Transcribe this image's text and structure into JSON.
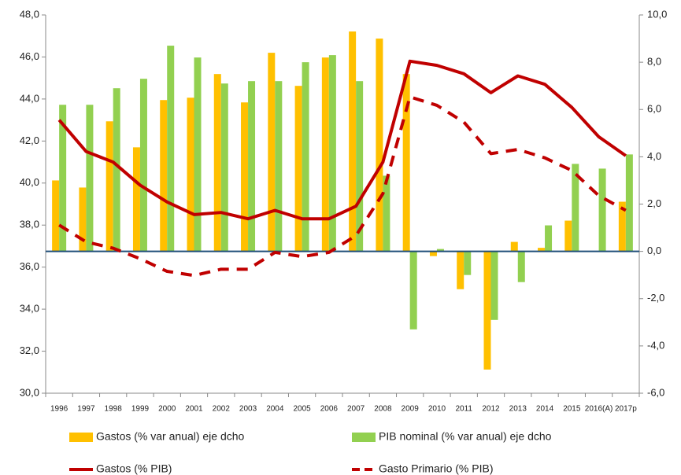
{
  "chart_data": {
    "type": "combo",
    "categories": [
      "1996",
      "1997",
      "1998",
      "1999",
      "2000",
      "2001",
      "2002",
      "2003",
      "2004",
      "2005",
      "2006",
      "2007",
      "2008",
      "2009",
      "2010",
      "2011",
      "2012",
      "2013",
      "2014",
      "2015",
      "2016(A)",
      "2017p"
    ],
    "ylim": [
      30,
      48
    ],
    "yticks": [
      {
        "value": 30,
        "label": "30,0"
      },
      {
        "value": 32,
        "label": "32,0"
      },
      {
        "value": 34,
        "label": "34,0"
      },
      {
        "value": 36,
        "label": "36,0"
      },
      {
        "value": 38,
        "label": "38,0"
      },
      {
        "value": 40,
        "label": "40,0"
      },
      {
        "value": 42,
        "label": "42,0"
      },
      {
        "value": 44,
        "label": "44,0"
      },
      {
        "value": 46,
        "label": "46,0"
      },
      {
        "value": 48,
        "label": "48,0"
      }
    ],
    "y2lim": [
      -6,
      10
    ],
    "y2ticks": [
      {
        "value": -6,
        "label": "-6,0"
      },
      {
        "value": -4,
        "label": "-4,0"
      },
      {
        "value": -2,
        "label": "-2,0"
      },
      {
        "value": 0,
        "label": "0,0"
      },
      {
        "value": 2,
        "label": "2,0"
      },
      {
        "value": 4,
        "label": "4,0"
      },
      {
        "value": 6,
        "label": "6,0"
      },
      {
        "value": 8,
        "label": "8,0"
      },
      {
        "value": 10,
        "label": "10,0"
      }
    ],
    "grid": false,
    "series": [
      {
        "name": "Gastos (% var anual) eje dcho",
        "type": "bar",
        "axis": "y2",
        "color": "#ffc000",
        "values": [
          3.0,
          2.7,
          5.5,
          4.4,
          6.4,
          6.5,
          7.5,
          6.3,
          8.4,
          7.0,
          8.2,
          9.3,
          9.0,
          7.5,
          -0.2,
          -1.6,
          -5.0,
          0.4,
          0.15,
          1.3,
          null,
          2.1
        ]
      },
      {
        "name": "PIB nominal (% var anual) eje dcho",
        "type": "bar",
        "axis": "y2",
        "color": "#92d050",
        "values": [
          6.2,
          6.2,
          6.9,
          7.3,
          8.7,
          8.2,
          7.1,
          7.2,
          7.2,
          8.0,
          8.3,
          7.2,
          3.2,
          -3.3,
          0.1,
          -1.0,
          -2.9,
          -1.3,
          1.1,
          3.7,
          3.5,
          4.1
        ]
      },
      {
        "name": "Gastos (% PIB)",
        "type": "line",
        "color": "#c00000",
        "dashed": false,
        "values": [
          43.0,
          41.5,
          41.0,
          39.9,
          39.1,
          38.5,
          38.6,
          38.3,
          38.7,
          38.3,
          38.3,
          38.9,
          41.0,
          45.8,
          45.6,
          45.2,
          44.3,
          45.1,
          44.7,
          43.6,
          42.2,
          41.3
        ]
      },
      {
        "name": "Gasto Primario (% PIB)",
        "type": "line",
        "color": "#c00000",
        "dashed": true,
        "values": [
          38.0,
          37.2,
          36.9,
          36.4,
          35.8,
          35.6,
          35.9,
          35.9,
          36.7,
          36.5,
          36.7,
          37.5,
          39.5,
          44.1,
          43.7,
          42.9,
          41.4,
          41.6,
          41.2,
          40.6,
          39.4,
          38.7
        ]
      }
    ]
  }
}
